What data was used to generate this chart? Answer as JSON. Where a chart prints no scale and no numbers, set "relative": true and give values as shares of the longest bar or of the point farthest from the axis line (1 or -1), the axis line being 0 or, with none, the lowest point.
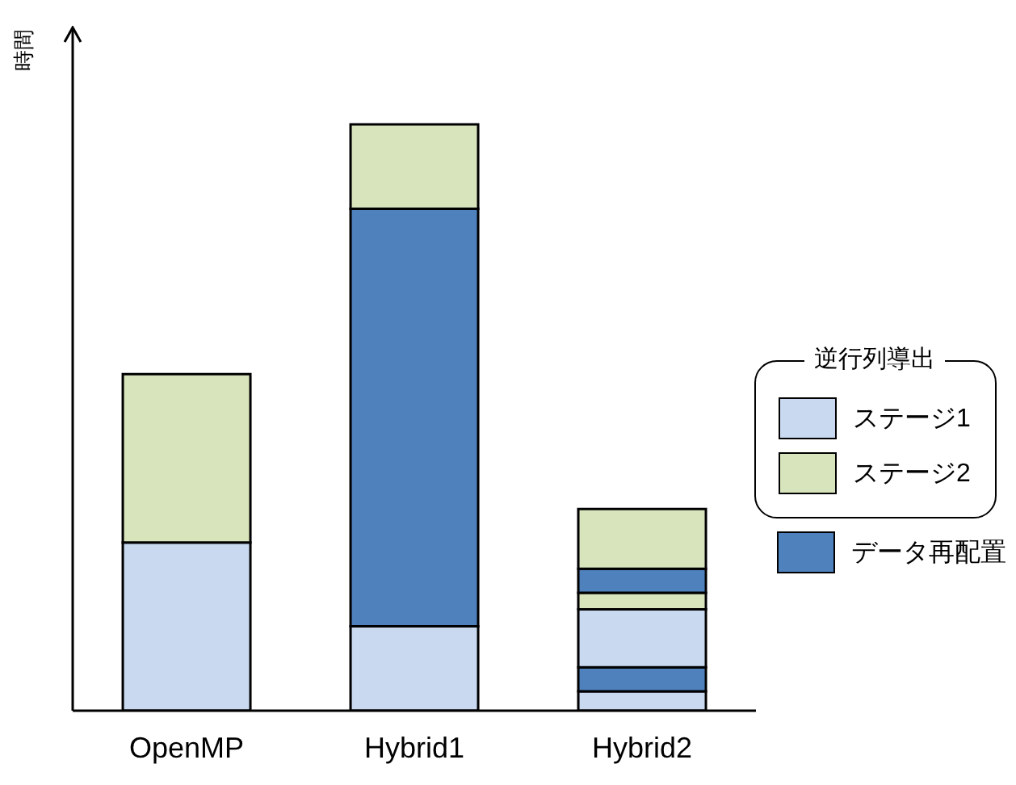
{
  "chart_data": {
    "type": "bar",
    "stacked": true,
    "relative": true,
    "ylabel": "時間",
    "legend_title": "逆行列導出",
    "legend": "right",
    "categories": [
      "OpenMP",
      "Hybrid1",
      "Hybrid2"
    ],
    "series": [
      {
        "name": "ステージ1",
        "color": "#c9daf0",
        "values": [
          0.287,
          0.144,
          0.033
        ]
      },
      {
        "name": "データ再配置",
        "color": "#4f81bd",
        "values": [
          null,
          0.712,
          0.041
        ]
      },
      {
        "color": "#c9daf0",
        "values": [
          null,
          null,
          0.099
        ]
      },
      {
        "name": "ステージ2",
        "color": "#d8e4bc",
        "values": [
          0.287,
          0.144,
          0.028
        ]
      },
      {
        "color": "#4f81bd",
        "values": [
          null,
          null,
          0.041
        ]
      },
      {
        "color": "#d8e4bc",
        "values": [
          null,
          null,
          0.102
        ]
      }
    ]
  }
}
